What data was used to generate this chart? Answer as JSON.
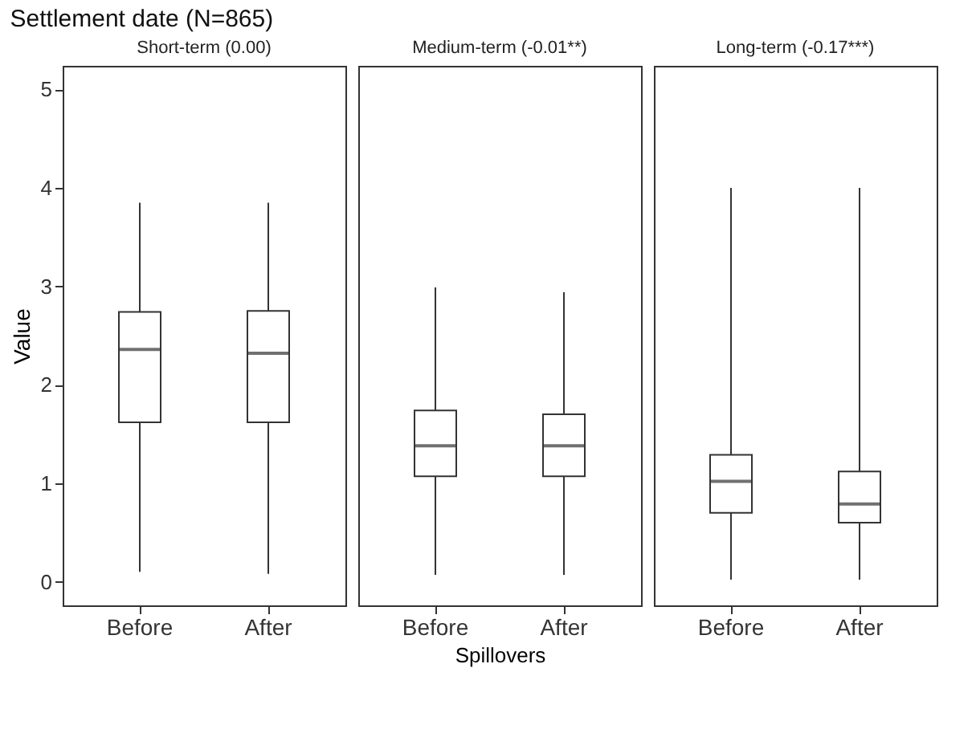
{
  "chart_data": [
    {
      "type": "box",
      "title": "Settlement date (N=865)",
      "subtitle": "Short-term (0.00)",
      "ylabel": "Value",
      "categories": [
        "Before",
        "After"
      ],
      "ylim": [
        -0.24,
        5.24
      ],
      "yticks": [
        0,
        1,
        2,
        3,
        4,
        5
      ],
      "grid": false,
      "boxes": [
        {
          "low": 0.1,
          "q1": 1.62,
          "median": 2.36,
          "q3": 2.74,
          "high": 3.85
        },
        {
          "low": 0.08,
          "q1": 1.62,
          "median": 2.32,
          "q3": 2.75,
          "high": 3.85
        }
      ]
    },
    {
      "type": "box",
      "subtitle": "Medium-term (-0.01**)",
      "xlabel": "Spillovers",
      "categories": [
        "Before",
        "After"
      ],
      "ylim": [
        -0.24,
        5.24
      ],
      "tick_labels": "x",
      "grid": false,
      "boxes": [
        {
          "low": 0.07,
          "q1": 1.07,
          "median": 1.38,
          "q3": 1.74,
          "high": 2.99
        },
        {
          "low": 0.07,
          "q1": 1.07,
          "median": 1.38,
          "q3": 1.7,
          "high": 2.94
        }
      ]
    },
    {
      "type": "box",
      "subtitle": "Long-term (-0.17***)",
      "categories": [
        "Before",
        "After"
      ],
      "ylim": [
        -0.24,
        5.24
      ],
      "tick_labels": "x",
      "grid": false,
      "boxes": [
        {
          "low": 0.02,
          "q1": 0.7,
          "median": 1.02,
          "q3": 1.29,
          "high": 4.0
        },
        {
          "low": 0.02,
          "q1": 0.6,
          "median": 0.79,
          "q3": 1.12,
          "high": 4.0
        }
      ]
    }
  ]
}
